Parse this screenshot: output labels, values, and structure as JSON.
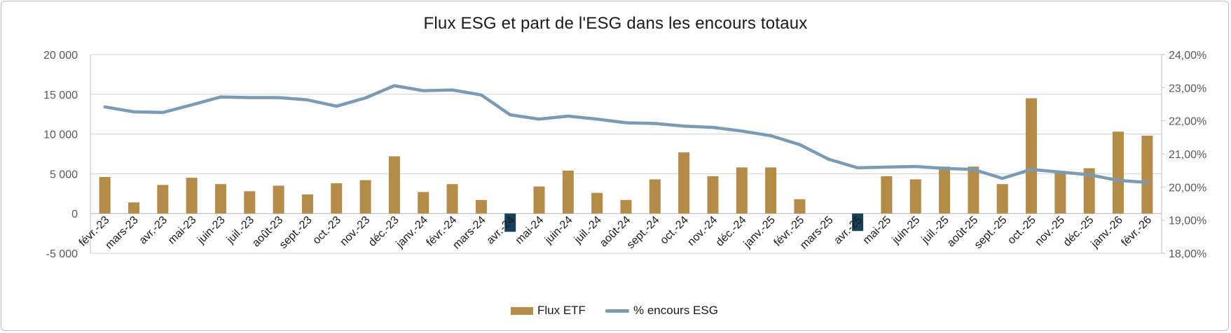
{
  "chart_data": {
    "type": "bar+line",
    "title": "Flux ESG et part de l'ESG dans les encours totaux",
    "categories": [
      "févr.-23",
      "mars-23",
      "avr.-23",
      "mai-23",
      "juin-23",
      "juil.-23",
      "août-23",
      "sept.-23",
      "oct.-23",
      "nov.-23",
      "déc.-23",
      "janv.-24",
      "févr.-24",
      "mars-24",
      "avr.-24",
      "mai-24",
      "juin-24",
      "juil.-24",
      "août-24",
      "sept.-24",
      "oct.-24",
      "nov.-24",
      "déc.-24",
      "janv.-25",
      "févr.-25",
      "mars-25",
      "avr.-25",
      "mai-25",
      "juin-25",
      "juil.-25",
      "août-25",
      "sept.-25",
      "oct.-25",
      "nov.-25",
      "déc.-25",
      "janv.-26",
      "févr.-26"
    ],
    "series": [
      {
        "name": "Flux ETF",
        "axis": "left",
        "kind": "bar",
        "color": "#b48c48",
        "negative_color": "#17415a",
        "values": [
          4600,
          1400,
          3600,
          4500,
          3700,
          2800,
          3500,
          2400,
          3800,
          4200,
          7200,
          2700,
          3700,
          1700,
          -2300,
          3400,
          5400,
          2600,
          1700,
          4300,
          7700,
          4700,
          5800,
          5800,
          1800,
          0,
          -2200,
          4700,
          4300,
          5900,
          5900,
          3700,
          14500,
          5100,
          5700,
          10300,
          9800
        ]
      },
      {
        "name": "% encours ESG",
        "axis": "right",
        "kind": "line",
        "color": "#7a9bb5",
        "values": [
          22.42,
          22.27,
          22.25,
          22.48,
          22.72,
          22.7,
          22.7,
          22.63,
          22.44,
          22.69,
          23.06,
          22.91,
          22.93,
          22.78,
          22.18,
          22.05,
          22.14,
          22.05,
          21.94,
          21.92,
          21.84,
          21.8,
          21.69,
          21.55,
          21.28,
          20.84,
          20.58,
          20.6,
          20.62,
          20.56,
          20.53,
          20.26,
          20.53,
          20.45,
          20.37,
          20.2,
          20.14
        ]
      }
    ],
    "y_left": {
      "min": -5000,
      "max": 20000,
      "ticks": [
        "-5 000",
        "0",
        "5 000",
        "10 000",
        "15 000",
        "20 000"
      ],
      "tick_values": [
        -5000,
        0,
        5000,
        10000,
        15000,
        20000
      ]
    },
    "y_right": {
      "min": 18,
      "max": 24,
      "ticks": [
        "18,00%",
        "19,00%",
        "20,00%",
        "21,00%",
        "22,00%",
        "23,00%",
        "24,00%"
      ],
      "tick_values": [
        18,
        19,
        20,
        21,
        22,
        23,
        24
      ]
    },
    "grid": true,
    "legend_position": "bottom-center"
  },
  "legend": {
    "bar_label": "Flux ETF",
    "line_label": "% encours ESG"
  }
}
